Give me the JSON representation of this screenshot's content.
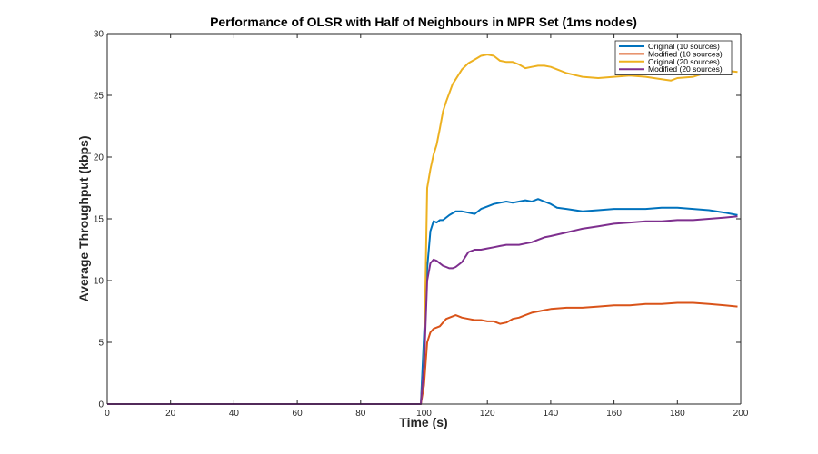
{
  "chart_data": {
    "type": "line",
    "title": "Performance of OLSR with Half of Neighbours in MPR Set (1ms nodes)",
    "xlabel": "Time (s)",
    "ylabel": "Average Throughput (kbps)",
    "xlim": [
      0,
      200
    ],
    "ylim": [
      0,
      30
    ],
    "xticks": [
      0,
      20,
      40,
      60,
      80,
      100,
      120,
      140,
      160,
      180,
      200
    ],
    "yticks": [
      0,
      5,
      10,
      15,
      20,
      25,
      30
    ],
    "grid": false,
    "legend_position": "top-right",
    "series": [
      {
        "name": "Original (10 sources)",
        "color": "#0072BD",
        "x": [
          0,
          99,
          100,
          101,
          102,
          103,
          104,
          105,
          106,
          108,
          110,
          112,
          114,
          116,
          118,
          120,
          122,
          124,
          126,
          128,
          130,
          132,
          134,
          136,
          138,
          140,
          142,
          145,
          150,
          155,
          160,
          165,
          170,
          175,
          180,
          185,
          190,
          195,
          199
        ],
        "y": [
          0,
          0,
          5.5,
          11,
          14,
          14.8,
          14.7,
          14.9,
          14.9,
          15.3,
          15.6,
          15.6,
          15.5,
          15.4,
          15.8,
          16.0,
          16.2,
          16.3,
          16.4,
          16.3,
          16.4,
          16.5,
          16.4,
          16.6,
          16.4,
          16.2,
          15.9,
          15.8,
          15.6,
          15.7,
          15.8,
          15.8,
          15.8,
          15.9,
          15.9,
          15.8,
          15.7,
          15.5,
          15.3
        ]
      },
      {
        "name": "Modified (10 sources)",
        "color": "#D95319",
        "x": [
          0,
          99,
          100,
          101,
          102,
          103,
          104,
          105,
          106,
          107,
          108,
          109,
          110,
          112,
          114,
          116,
          118,
          120,
          122,
          124,
          126,
          128,
          130,
          132,
          134,
          136,
          138,
          140,
          145,
          150,
          155,
          160,
          165,
          170,
          175,
          180,
          185,
          190,
          195,
          199
        ],
        "y": [
          0,
          0,
          1.5,
          5.0,
          5.8,
          6.1,
          6.2,
          6.3,
          6.6,
          6.9,
          7.0,
          7.1,
          7.2,
          7.0,
          6.9,
          6.8,
          6.8,
          6.7,
          6.7,
          6.5,
          6.6,
          6.9,
          7.0,
          7.2,
          7.4,
          7.5,
          7.6,
          7.7,
          7.8,
          7.8,
          7.9,
          8.0,
          8.0,
          8.1,
          8.1,
          8.2,
          8.2,
          8.1,
          8.0,
          7.9
        ]
      },
      {
        "name": "Original (20 sources)",
        "color": "#EDB120",
        "x": [
          0,
          99,
          100,
          101,
          102,
          103,
          104,
          105,
          106,
          107,
          108,
          109,
          110,
          112,
          114,
          116,
          118,
          120,
          122,
          124,
          126,
          128,
          130,
          132,
          134,
          136,
          138,
          140,
          142,
          145,
          150,
          155,
          160,
          165,
          170,
          175,
          178,
          180,
          185,
          190,
          195,
          199
        ],
        "y": [
          0,
          0,
          3,
          17.5,
          19,
          20.2,
          21,
          22.3,
          23.7,
          24.5,
          25.2,
          25.9,
          26.3,
          27.1,
          27.6,
          27.9,
          28.2,
          28.3,
          28.2,
          27.8,
          27.7,
          27.7,
          27.5,
          27.2,
          27.3,
          27.4,
          27.4,
          27.3,
          27.1,
          26.8,
          26.5,
          26.4,
          26.5,
          26.6,
          26.5,
          26.3,
          26.2,
          26.4,
          26.5,
          26.9,
          27.0,
          26.9
        ]
      },
      {
        "name": "Modified (20 sources)",
        "color": "#7E2F8E",
        "x": [
          0,
          99,
          100,
          101,
          102,
          103,
          104,
          105,
          106,
          107,
          108,
          109,
          110,
          112,
          114,
          116,
          118,
          120,
          122,
          124,
          126,
          128,
          130,
          132,
          134,
          136,
          138,
          140,
          145,
          150,
          155,
          160,
          165,
          170,
          175,
          180,
          185,
          190,
          195,
          199
        ],
        "y": [
          0,
          0,
          3,
          10.0,
          11.4,
          11.7,
          11.6,
          11.4,
          11.2,
          11.1,
          11.0,
          11.0,
          11.1,
          11.5,
          12.3,
          12.5,
          12.5,
          12.6,
          12.7,
          12.8,
          12.9,
          12.9,
          12.9,
          13.0,
          13.1,
          13.3,
          13.5,
          13.6,
          13.9,
          14.2,
          14.4,
          14.6,
          14.7,
          14.8,
          14.8,
          14.9,
          14.9,
          15.0,
          15.1,
          15.2
        ]
      }
    ]
  }
}
